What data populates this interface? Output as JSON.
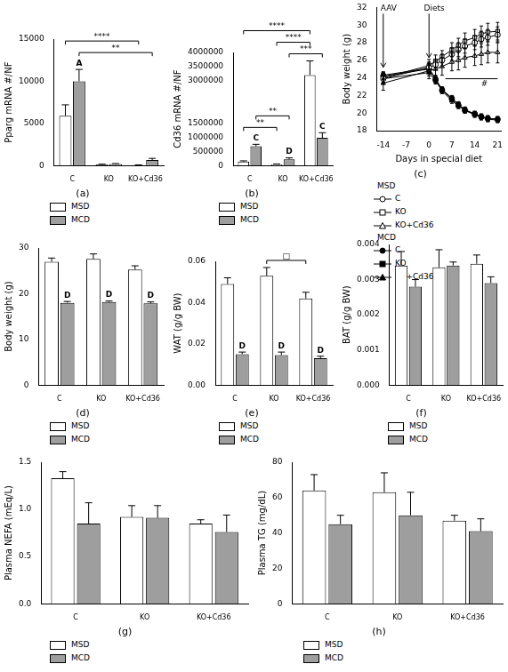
{
  "chart_data": [
    {
      "type": "bar",
      "title": "(a)",
      "y_label": "Pparg mRNA #/NF",
      "categories": [
        "C",
        "KO",
        "KO+Cd36"
      ],
      "series": [
        {
          "name": "MSD",
          "color": "#ffffff",
          "values": [
            5900,
            120,
            60
          ],
          "errors": [
            1300,
            40,
            20
          ]
        },
        {
          "name": "MCD",
          "color": "#9e9e9e",
          "values": [
            10000,
            180,
            650
          ],
          "errors": [
            1400,
            50,
            200
          ]
        }
      ],
      "ylim": [
        0,
        15000
      ],
      "yticks": [
        0,
        5000,
        10000,
        15000
      ],
      "grid": false,
      "annotations": [
        {
          "text": "A",
          "category": "C",
          "series": "MCD"
        }
      ],
      "brackets": [
        {
          "text": "**",
          "from": [
            "C",
            "MCD"
          ],
          "to": [
            "KO+Cd36",
            "MCD"
          ]
        },
        {
          "text": "****",
          "from": [
            "C",
            "MSD"
          ],
          "to": [
            "KO+Cd36",
            "MSD"
          ]
        }
      ]
    },
    {
      "type": "bar",
      "title": "(b)",
      "y_label": "Cd36 mRNA #/NF",
      "categories": [
        "C",
        "KO",
        "KO+Cd36"
      ],
      "series": [
        {
          "name": "MSD",
          "color": "#ffffff",
          "values": [
            140000,
            40000,
            3200000
          ],
          "errors": [
            25000,
            15000,
            500000
          ]
        },
        {
          "name": "MCD",
          "color": "#9e9e9e",
          "values": [
            680000,
            220000,
            980000
          ],
          "errors": [
            70000,
            50000,
            180000
          ]
        }
      ],
      "ylim": [
        0,
        4000000
      ],
      "yticks": [
        0,
        500000,
        1000000,
        1500000,
        3000000,
        3500000,
        4000000
      ],
      "grid": false,
      "annotations": [
        {
          "text": "C",
          "category": "C",
          "series": "MCD"
        },
        {
          "text": "D",
          "category": "KO",
          "series": "MCD"
        },
        {
          "text": "C",
          "category": "KO+Cd36",
          "series": "MCD"
        }
      ],
      "brackets": [
        {
          "text": "**",
          "from": [
            "C",
            "MSD"
          ],
          "to": [
            "KO",
            "MSD"
          ]
        },
        {
          "text": "**",
          "from": [
            "C",
            "MCD"
          ],
          "to": [
            "KO",
            "MCD"
          ]
        },
        {
          "text": "***",
          "from": [
            "KO",
            "MCD"
          ],
          "to": [
            "KO+Cd36",
            "MCD"
          ]
        },
        {
          "text": "****",
          "from": [
            "KO",
            "MSD"
          ],
          "to": [
            "KO+Cd36",
            "MSD"
          ]
        },
        {
          "text": "****",
          "from": [
            "C",
            "MSD"
          ],
          "to": [
            "KO+Cd36",
            "MSD"
          ]
        }
      ]
    },
    {
      "type": "line",
      "title": "(c)",
      "x_label": "Days in special diet",
      "y_label": "Body weight (g)",
      "x": [
        -14,
        0,
        2,
        4,
        7,
        9,
        11,
        14,
        16,
        18,
        21
      ],
      "series": [
        {
          "name": "C",
          "group": "MSD",
          "color": "#ffffff",
          "marker": "circle",
          "line_style": "solid",
          "values": [
            23.9,
            25.2,
            25.5,
            26.0,
            26.7,
            27.2,
            27.6,
            28.0,
            28.4,
            28.6,
            28.9
          ],
          "errors": [
            0.6,
            0.6,
            0.6,
            0.7,
            0.7,
            0.8,
            0.8,
            0.8,
            0.9,
            0.9,
            0.9
          ]
        },
        {
          "name": "KO",
          "group": "MSD",
          "color": "#ffffff",
          "marker": "square",
          "line_style": "solid",
          "values": [
            24.0,
            25.4,
            25.9,
            26.4,
            27.2,
            27.7,
            28.2,
            28.6,
            29.0,
            29.2,
            29.3
          ],
          "errors": [
            0.6,
            0.7,
            0.7,
            0.7,
            0.8,
            0.8,
            0.9,
            0.9,
            0.9,
            1.0,
            1.0
          ]
        },
        {
          "name": "KO+Cd36",
          "group": "MSD",
          "color": "#ffffff",
          "marker": "triangle",
          "line_style": "solid",
          "values": [
            23.4,
            24.8,
            25.0,
            25.3,
            25.8,
            26.0,
            26.3,
            26.5,
            26.7,
            26.9,
            26.9
          ],
          "errors": [
            0.8,
            0.9,
            0.9,
            1.0,
            1.0,
            1.1,
            1.1,
            1.1,
            1.2,
            1.2,
            1.2
          ]
        },
        {
          "name": "C",
          "group": "MCD",
          "color": "#000000",
          "marker": "circle",
          "line_style": "solid",
          "values": [
            24.2,
            25.0,
            23.8,
            22.6,
            21.6,
            20.9,
            20.3,
            19.9,
            19.6,
            19.4,
            19.3
          ],
          "errors": [
            0.4,
            0.4,
            0.4,
            0.3,
            0.3,
            0.3,
            0.3,
            0.3,
            0.3,
            0.3,
            0.3
          ]
        },
        {
          "name": "KO",
          "group": "MCD",
          "color": "#000000",
          "marker": "square",
          "line_style": "solid",
          "values": [
            24.3,
            25.1,
            23.9,
            22.7,
            21.7,
            21.0,
            20.4,
            19.9,
            19.6,
            19.3,
            19.2
          ],
          "errors": [
            0.4,
            0.4,
            0.4,
            0.3,
            0.3,
            0.3,
            0.3,
            0.3,
            0.3,
            0.3,
            0.3
          ]
        },
        {
          "name": "KO+Cd36",
          "group": "MCD",
          "color": "#000000",
          "marker": "triangle",
          "line_style": "solid",
          "values": [
            23.9,
            24.6,
            23.7,
            22.5,
            21.4,
            20.8,
            20.3,
            19.8,
            19.5,
            19.4,
            19.3
          ],
          "errors": [
            0.4,
            0.4,
            0.4,
            0.3,
            0.3,
            0.3,
            0.3,
            0.3,
            0.3,
            0.3,
            0.3
          ]
        }
      ],
      "xlim": [
        -16,
        22
      ],
      "xticks": [
        -14,
        -7,
        0,
        7,
        14,
        21
      ],
      "ylim": [
        18,
        32
      ],
      "yticks": [
        18,
        20,
        22,
        24,
        26,
        28,
        30,
        32
      ],
      "grid": false,
      "arrows": [
        {
          "text": "AAV",
          "x": -14,
          "y": 31.4,
          "to_y": 25.2
        },
        {
          "text": "Diets",
          "x": 0,
          "y": 31.4,
          "to_y": 26.3
        }
      ],
      "lines": [
        {
          "text": "#",
          "x": [
            5,
            21
          ],
          "y": 23.9
        }
      ]
    },
    {
      "type": "bar",
      "title": "(d)",
      "y_label": "Body weight (g)",
      "categories": [
        "C",
        "KO",
        "KO+Cd36"
      ],
      "series": [
        {
          "name": "MSD",
          "color": "#ffffff",
          "values": [
            27.0,
            27.6,
            25.3
          ],
          "errors": [
            0.8,
            1.1,
            0.8
          ]
        },
        {
          "name": "MCD",
          "color": "#9e9e9e",
          "values": [
            18.0,
            18.2,
            17.9
          ],
          "errors": [
            0.3,
            0.2,
            0.3
          ]
        }
      ],
      "ylim": [
        0,
        30
      ],
      "yticks": [
        0,
        10,
        20,
        30
      ],
      "grid": false,
      "annotations": [
        {
          "text": "D",
          "category": "C",
          "series": "MCD"
        },
        {
          "text": "D",
          "category": "KO",
          "series": "MCD"
        },
        {
          "text": "D",
          "category": "KO+Cd36",
          "series": "MCD"
        }
      ],
      "brackets": []
    },
    {
      "type": "bar",
      "title": "(e)",
      "y_label": "WAT (g/g BW)",
      "categories": [
        "C",
        "KO",
        "KO+Cd36"
      ],
      "series": [
        {
          "name": "MSD",
          "color": "#ffffff",
          "values": [
            0.049,
            0.053,
            0.042
          ],
          "errors": [
            0.003,
            0.004,
            0.003
          ]
        },
        {
          "name": "MCD",
          "color": "#9e9e9e",
          "values": [
            0.015,
            0.0145,
            0.013
          ],
          "errors": [
            0.001,
            0.0015,
            0.001
          ]
        }
      ],
      "ylim": [
        0,
        0.06
      ],
      "yticks": [
        {
          "value": 0,
          "label": "0.00"
        },
        {
          "value": 0.02,
          "label": "0.02"
        },
        {
          "value": 0.04,
          "label": "0.04"
        },
        {
          "value": 0.06,
          "label": "0.06"
        }
      ],
      "grid": false,
      "annotations": [
        {
          "text": "D",
          "category": "C",
          "series": "MCD"
        },
        {
          "text": "D",
          "category": "KO",
          "series": "MCD"
        },
        {
          "text": "D",
          "category": "KO+Cd36",
          "series": "MCD"
        }
      ],
      "brackets": [
        {
          "text": "□",
          "from": [
            "KO",
            "MSD"
          ],
          "to": [
            "KO+Cd36",
            "MSD"
          ]
        }
      ]
    },
    {
      "type": "bar",
      "title": "(f)",
      "y_label": "BAT (g/g BW)",
      "categories": [
        "C",
        "KO",
        "KO+Cd36"
      ],
      "series": [
        {
          "name": "MSD",
          "color": "#ffffff",
          "values": [
            0.0034,
            0.00335,
            0.00345
          ],
          "errors": [
            0.0004,
            0.0005,
            0.00025
          ]
        },
        {
          "name": "MCD",
          "color": "#9e9e9e",
          "values": [
            0.0028,
            0.0034,
            0.0029
          ],
          "errors": [
            0.0002,
            0.0001,
            0.00018
          ]
        }
      ],
      "ylim": [
        0,
        0.004
      ],
      "yticks": [
        {
          "value": 0,
          "label": "0.000"
        },
        {
          "value": 0.001,
          "label": "0.001"
        },
        {
          "value": 0.002,
          "label": "0.002"
        },
        {
          "value": 0.003,
          "label": "0.003"
        },
        {
          "value": 0.004,
          "label": "0.004"
        }
      ],
      "grid": false,
      "annotations": [],
      "brackets": []
    },
    {
      "type": "bar",
      "title": "(g)",
      "y_label": "Plasma NEFA (mEq/L)",
      "categories": [
        "C",
        "KO",
        "KO+Cd36"
      ],
      "series": [
        {
          "name": "MSD",
          "color": "#ffffff",
          "values": [
            1.33,
            0.92,
            0.85
          ],
          "errors": [
            0.07,
            0.12,
            0.04
          ]
        },
        {
          "name": "MCD",
          "color": "#9e9e9e",
          "values": [
            0.85,
            0.91,
            0.76
          ],
          "errors": [
            0.22,
            0.13,
            0.18
          ]
        }
      ],
      "ylim": [
        0,
        1.5
      ],
      "yticks": [
        {
          "value": 0,
          "label": "0.0"
        },
        0.5,
        {
          "value": 1,
          "label": "1.0"
        },
        1.5
      ],
      "grid": false,
      "annotations": [],
      "brackets": []
    },
    {
      "type": "bar",
      "title": "(h)",
      "y_label": "Plasma TG (mg/dL)",
      "categories": [
        "C",
        "KO",
        "KO+Cd36"
      ],
      "series": [
        {
          "name": "MSD",
          "color": "#ffffff",
          "values": [
            64,
            63,
            47
          ],
          "errors": [
            9,
            11,
            3
          ]
        },
        {
          "name": "MCD",
          "color": "#9e9e9e",
          "values": [
            45,
            50,
            41
          ],
          "errors": [
            5,
            13,
            7
          ]
        }
      ],
      "ylim": [
        0,
        80
      ],
      "yticks": [
        0,
        20,
        40,
        60,
        80
      ],
      "grid": false,
      "annotations": [],
      "brackets": []
    }
  ]
}
